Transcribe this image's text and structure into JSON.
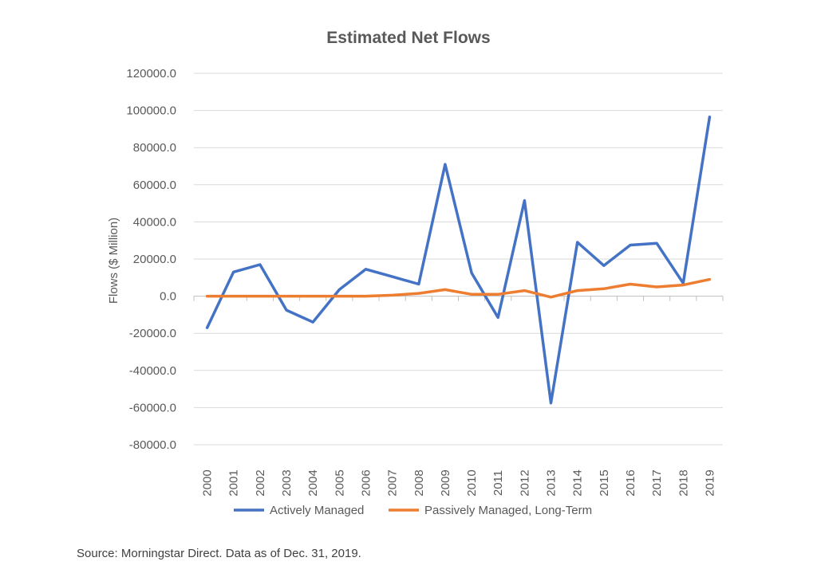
{
  "chart_data": {
    "type": "line",
    "title": "Estimated Net Flows",
    "ylabel": "Flows ($ Million)",
    "xlabel": "",
    "categories": [
      "2000",
      "2001",
      "2002",
      "2003",
      "2004",
      "2005",
      "2006",
      "2007",
      "2008",
      "2009",
      "2010",
      "2011",
      "2012",
      "2013",
      "2014",
      "2015",
      "2016",
      "2017",
      "2018",
      "2019"
    ],
    "ylim": [
      -80000,
      120000
    ],
    "yticks": [
      120000,
      100000,
      80000,
      60000,
      40000,
      20000,
      0,
      -20000,
      -40000,
      -60000,
      -80000
    ],
    "ytick_labels": [
      "120000.0",
      "100000.0",
      "80000.0",
      "60000.0",
      "40000.0",
      "20000.0",
      "0.0",
      "-20000.0",
      "-40000.0",
      "-60000.0",
      "-80000.0"
    ],
    "grid": true,
    "legend_position": "bottom",
    "series": [
      {
        "name": "Actively Managed",
        "color": "#4472c4",
        "values": [
          -17000,
          13000,
          17000,
          -7500,
          -14000,
          3500,
          14500,
          10500,
          6500,
          71000,
          12500,
          -11500,
          51500,
          -57500,
          29000,
          16500,
          27500,
          28500,
          7000,
          96500
        ]
      },
      {
        "name": "Passively Managed, Long-Term",
        "color": "#ed7d31",
        "values": [
          0,
          0,
          0,
          0,
          0,
          0,
          0,
          500,
          1500,
          3500,
          1000,
          1000,
          3000,
          -500,
          3000,
          4000,
          6500,
          5000,
          6000,
          9000
        ]
      }
    ]
  },
  "source_note": "Source: Morningstar Direct. Data as of Dec. 31, 2019."
}
